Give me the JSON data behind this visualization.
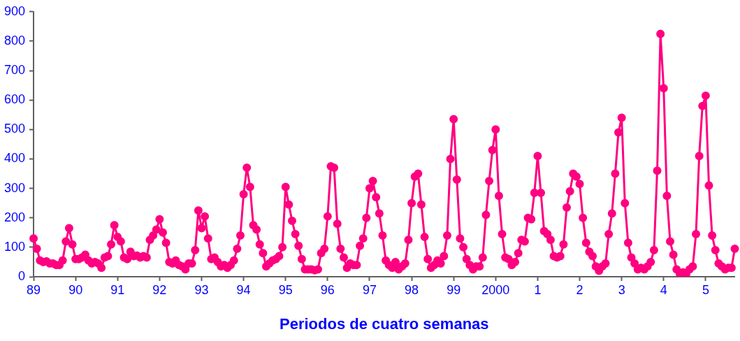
{
  "chart_data": {
    "type": "line",
    "xlabel": "Periodos de cuatro semanas",
    "categories": [
      "89",
      null,
      null,
      null,
      null,
      null,
      null,
      null,
      null,
      null,
      null,
      null,
      null,
      "90",
      null,
      null,
      null,
      null,
      null,
      null,
      null,
      null,
      null,
      null,
      null,
      null,
      "91",
      null,
      null,
      null,
      null,
      null,
      null,
      null,
      null,
      null,
      null,
      null,
      null,
      "92",
      null,
      null,
      null,
      null,
      null,
      null,
      null,
      null,
      null,
      null,
      null,
      null,
      "93",
      null,
      null,
      null,
      null,
      null,
      null,
      null,
      null,
      null,
      null,
      null,
      null,
      "94",
      null,
      null,
      null,
      null,
      null,
      null,
      null,
      null,
      null,
      null,
      null,
      null,
      "95",
      null,
      null,
      null,
      null,
      null,
      null,
      null,
      null,
      null,
      null,
      null,
      null,
      "96",
      null,
      null,
      null,
      null,
      null,
      null,
      null,
      null,
      null,
      null,
      null,
      null,
      "97",
      null,
      null,
      null,
      null,
      null,
      null,
      null,
      null,
      null,
      null,
      null,
      null,
      "98",
      null,
      null,
      null,
      null,
      null,
      null,
      null,
      null,
      null,
      null,
      null,
      null,
      "99",
      null,
      null,
      null,
      null,
      null,
      null,
      null,
      null,
      null,
      null,
      null,
      null,
      "2000",
      null,
      null,
      null,
      null,
      null,
      null,
      null,
      null,
      null,
      null,
      null,
      null,
      "1",
      null,
      null,
      null,
      null,
      null,
      null,
      null,
      null,
      null,
      null,
      null,
      null,
      "2",
      null,
      null,
      null,
      null,
      null,
      null,
      null,
      null,
      null,
      null,
      null,
      null,
      "3",
      null,
      null,
      null,
      null,
      null,
      null,
      null,
      null,
      null,
      null,
      null,
      null,
      "4",
      null,
      null,
      null,
      null,
      null,
      null,
      null,
      null,
      null,
      null,
      null,
      null,
      "5",
      null,
      null,
      null,
      null,
      null,
      null,
      null,
      null,
      null
    ],
    "series": [
      {
        "color": "#ff0080",
        "values": [
          130,
          95,
          55,
          50,
          52,
          45,
          45,
          40,
          40,
          55,
          120,
          165,
          110,
          60,
          60,
          65,
          75,
          55,
          45,
          50,
          45,
          30,
          65,
          70,
          110,
          175,
          135,
          120,
          65,
          60,
          85,
          70,
          72,
          65,
          70,
          65,
          125,
          140,
          160,
          195,
          150,
          115,
          50,
          45,
          55,
          40,
          35,
          25,
          45,
          45,
          90,
          225,
          165,
          205,
          130,
          60,
          65,
          50,
          35,
          40,
          30,
          40,
          55,
          95,
          140,
          280,
          370,
          305,
          175,
          160,
          110,
          80,
          35,
          45,
          55,
          60,
          70,
          100,
          305,
          245,
          190,
          145,
          105,
          60,
          25,
          25,
          25,
          22,
          25,
          80,
          95,
          205,
          375,
          370,
          180,
          95,
          65,
          30,
          45,
          40,
          40,
          105,
          130,
          200,
          300,
          325,
          270,
          215,
          140,
          55,
          40,
          30,
          50,
          25,
          35,
          45,
          125,
          250,
          340,
          350,
          245,
          135,
          60,
          30,
          40,
          55,
          45,
          70,
          140,
          400,
          535,
          330,
          130,
          100,
          60,
          40,
          25,
          35,
          35,
          65,
          210,
          325,
          430,
          500,
          275,
          145,
          65,
          60,
          40,
          50,
          80,
          125,
          120,
          200,
          195,
          285,
          410,
          285,
          155,
          145,
          125,
          70,
          65,
          70,
          110,
          235,
          290,
          350,
          340,
          315,
          200,
          115,
          85,
          70,
          35,
          20,
          35,
          45,
          145,
          215,
          350,
          490,
          540,
          250,
          115,
          65,
          45,
          25,
          30,
          25,
          35,
          50,
          90,
          360,
          825,
          640,
          275,
          120,
          75,
          25,
          10,
          15,
          10,
          25,
          35,
          145,
          410,
          580,
          615,
          310,
          140,
          90,
          45,
          35,
          25,
          30,
          30,
          95
        ]
      }
    ],
    "ylim": [
      0,
      900
    ],
    "yticks": [
      0,
      100,
      200,
      300,
      400,
      500,
      600,
      700,
      800,
      900
    ],
    "grid": false,
    "legend": false,
    "marker": "circle",
    "line_style": "solid"
  }
}
